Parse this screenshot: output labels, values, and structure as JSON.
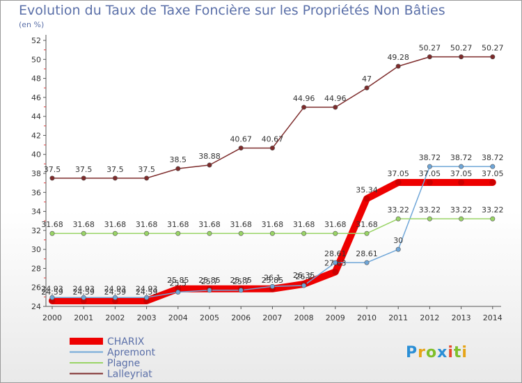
{
  "title": "Evolution du Taux de Taxe Foncière sur les Propriétés Non Bâties",
  "unit": "(en %)",
  "logo": "Proxiti",
  "chart_data": {
    "type": "line",
    "title": "Evolution du Taux de Taxe Foncière sur les Propriétés Non Bâties",
    "ylabel": "(en %)",
    "x": [
      "2000",
      "2001",
      "2002",
      "2003",
      "2004",
      "2005",
      "2006",
      "2007",
      "2008",
      "2009",
      "2010",
      "2011",
      "2012",
      "2013",
      "2014"
    ],
    "ylim": [
      24,
      52
    ],
    "yticks": [
      24,
      26,
      28,
      30,
      32,
      34,
      36,
      38,
      40,
      42,
      44,
      46,
      48,
      50,
      52
    ],
    "grid": false,
    "legend": "bottom-left",
    "series": [
      {
        "name": "CHARIX",
        "color": "#ee0000",
        "width": 10,
        "values": [
          24.59,
          24.59,
          24.59,
          24.59,
          25.85,
          25.85,
          25.85,
          25.85,
          26.35,
          27.63,
          35.34,
          37.05,
          37.05,
          37.05,
          37.05
        ],
        "labels": [
          "24.59",
          "24.59",
          "24.59",
          "24.59",
          "25.85",
          "25.85",
          "25.85",
          "25.85",
          "26.35",
          "27.63",
          "35.34",
          "37.05",
          "37.05",
          "37.05",
          "37.05"
        ]
      },
      {
        "name": "Apremont",
        "color": "#6fa6d8",
        "width": 1.5,
        "values": [
          24.93,
          24.93,
          24.93,
          24.93,
          25.5,
          25.7,
          25.7,
          26.1,
          26.2,
          28.61,
          28.61,
          30,
          38.72,
          38.72,
          38.72
        ],
        "labels": [
          "24.93",
          "24.93",
          "24.93",
          "24.93",
          "25.5",
          "25.7",
          "25.7",
          "26.1",
          "26.2",
          "28.61",
          "28.61",
          "30",
          "38.72",
          "38.72",
          "38.72"
        ]
      },
      {
        "name": "Plagne",
        "color": "#99d466",
        "width": 1.5,
        "values": [
          31.68,
          31.68,
          31.68,
          31.68,
          31.68,
          31.68,
          31.68,
          31.68,
          31.68,
          31.68,
          31.68,
          33.22,
          33.22,
          33.22,
          33.22
        ],
        "labels": [
          "31.68",
          "31.68",
          "31.68",
          "31.68",
          "31.68",
          "31.68",
          "31.68",
          "31.68",
          "31.68",
          "31.68",
          "31.68",
          "33.22",
          "33.22",
          "33.22",
          "33.22"
        ]
      },
      {
        "name": "Lalleyriat",
        "color": "#7d2b2b",
        "width": 1.5,
        "values": [
          37.5,
          37.5,
          37.5,
          37.5,
          38.5,
          38.88,
          40.67,
          40.67,
          44.96,
          44.96,
          47,
          49.28,
          50.27,
          50.27,
          50.27
        ],
        "labels": [
          "37.5",
          "37.5",
          "37.5",
          "37.5",
          "38.5",
          "38.88",
          "40.67",
          "40.67",
          "44.96",
          "44.96",
          "47",
          "49.28",
          "50.27",
          "50.27",
          "50.27"
        ]
      }
    ]
  }
}
